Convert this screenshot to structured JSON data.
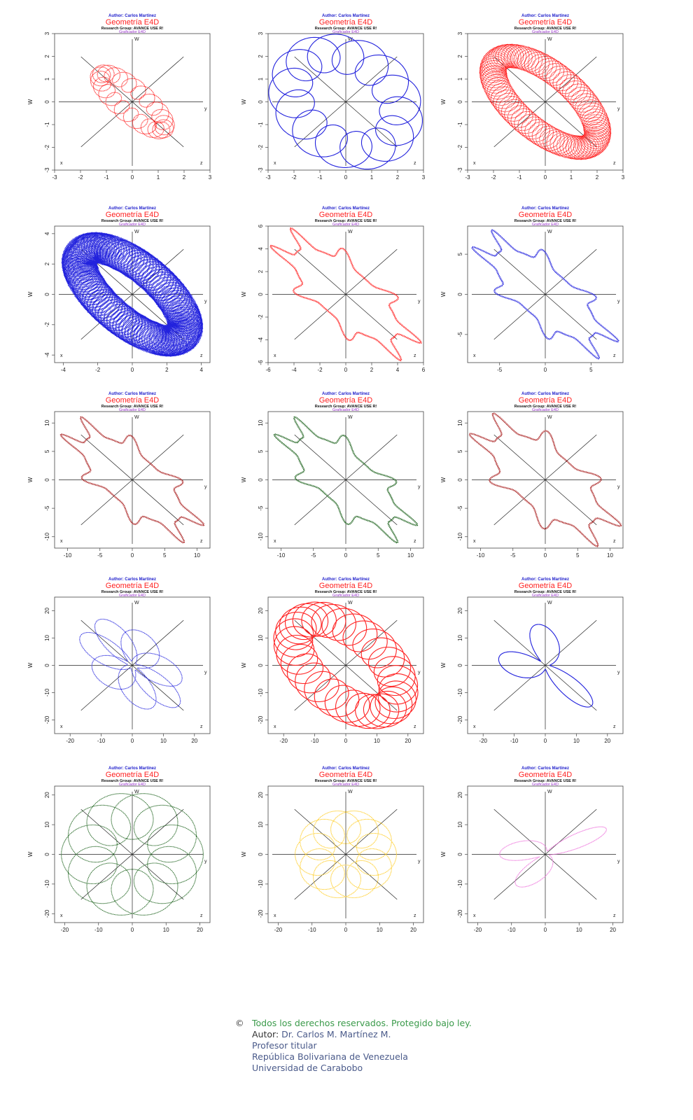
{
  "header": {
    "author": "Author: Carlos Martínez",
    "title": "Geometría E4D",
    "group": "Research Group: AVANCE USE R!",
    "graficador": "Graficador E4D",
    "colors": {
      "author": "#2222cc",
      "title": "#ff2222",
      "group": "#111111",
      "graficador": "#9933cc"
    }
  },
  "chart_data": [
    {
      "type": "scatter",
      "title": "Geometría E4D",
      "ylabel": "W",
      "corner_labels": {
        "w": "W",
        "y": "y",
        "x": "x",
        "z": "z"
      },
      "xlim": [
        -3,
        3
      ],
      "ylim": [
        -3,
        3
      ],
      "xticks": [
        -3,
        -2,
        -1,
        0,
        1,
        2,
        3
      ],
      "yticks": [
        -3,
        -2,
        -1,
        0,
        1,
        2,
        3
      ],
      "curve": "wavy-diagonal",
      "color": "#ff2222",
      "R": 1.7,
      "wobble": 0.22,
      "freq": 22,
      "aspect": 0.3
    },
    {
      "type": "line",
      "title": "Geometría E4D",
      "ylabel": "W",
      "corner_labels": {
        "w": "W",
        "y": "y",
        "x": "x",
        "z": "z"
      },
      "xlim": [
        -3,
        3
      ],
      "ylim": [
        -3,
        3
      ],
      "xticks": [
        -3,
        -2,
        -1,
        0,
        1,
        2,
        3
      ],
      "yticks": [
        -3,
        -2,
        -1,
        0,
        1,
        2,
        3
      ],
      "curve": "wavy-path",
      "color": "#2222dd",
      "R": 2.4,
      "wobble": 0.35,
      "freq": 14,
      "aspect": 0.55
    },
    {
      "type": "scatter",
      "title": "Geometría E4D",
      "ylabel": "W",
      "corner_labels": {
        "w": "W",
        "y": "y",
        "x": "x",
        "z": "z"
      },
      "xlim": [
        -3,
        3
      ],
      "ylim": [
        -3,
        3
      ],
      "xticks": [
        -3,
        -2,
        -1,
        0,
        1,
        2,
        3
      ],
      "yticks": [
        -3,
        -2,
        -1,
        0,
        1,
        2,
        3
      ],
      "curve": "helix-ellipse",
      "color": "#ff2222",
      "R": 2.6,
      "wobble": 0.2,
      "freq": 90,
      "aspect": 0.45
    },
    {
      "type": "scatter",
      "title": "Geometría E4D",
      "ylabel": "W",
      "corner_labels": {
        "w": "W",
        "y": "y",
        "x": "x",
        "z": "z"
      },
      "xlim": [
        -4.5,
        4.5
      ],
      "ylim": [
        -4.5,
        4.5
      ],
      "xticks": [
        -4,
        -2,
        0,
        2,
        4
      ],
      "yticks": [
        -4,
        -2,
        0,
        2,
        4
      ],
      "curve": "helix-ellipse-dots",
      "color": "#2222dd",
      "R": 4.0,
      "wobble": 0.25,
      "freq": 110,
      "aspect": 0.42
    },
    {
      "type": "scatter",
      "title": "Geometría E4D",
      "ylabel": "W",
      "corner_labels": {
        "w": "W",
        "y": "y",
        "x": "x",
        "z": "z"
      },
      "xlim": [
        -6,
        6
      ],
      "ylim": [
        -6,
        6
      ],
      "xticks": [
        -6,
        -4,
        -2,
        0,
        2,
        4,
        6
      ],
      "yticks": [
        -6,
        -4,
        -2,
        0,
        2,
        4,
        6
      ],
      "curve": "ellipse-lobes",
      "color": "#ff2222",
      "R": 5.3,
      "wobble": 0.45,
      "freq": 4,
      "aspect": 0.38
    },
    {
      "type": "scatter",
      "title": "Geometría E4D",
      "ylabel": "W",
      "corner_labels": {
        "w": "W",
        "y": "y",
        "x": "x",
        "z": "z"
      },
      "xlim": [
        -8.5,
        8.5
      ],
      "ylim": [
        -8.5,
        8.5
      ],
      "xticks": [
        -5,
        0,
        5
      ],
      "yticks": [
        -5,
        0,
        5
      ],
      "curve": "ellipse-lobes",
      "color": "#2222dd",
      "R": 7.3,
      "wobble": 0.45,
      "freq": 4,
      "aspect": 0.38
    },
    {
      "type": "scatter",
      "title": "Geometría E4D",
      "ylabel": "W",
      "corner_labels": {
        "w": "W",
        "y": "y",
        "x": "x",
        "z": "z"
      },
      "xlim": [
        -12,
        12
      ],
      "ylim": [
        -12,
        12
      ],
      "xticks": [
        -10,
        -5,
        0,
        5,
        10
      ],
      "yticks": [
        -10,
        -5,
        0,
        5,
        10
      ],
      "curve": "ellipse-lobes",
      "color": "#aa2222",
      "R": 10,
      "wobble": 0.45,
      "freq": 4,
      "aspect": 0.4
    },
    {
      "type": "scatter",
      "title": "Geometría E4D",
      "ylabel": "W",
      "corner_labels": {
        "w": "W",
        "y": "y",
        "x": "x",
        "z": "z"
      },
      "xlim": [
        -12,
        12
      ],
      "ylim": [
        -12,
        12
      ],
      "xticks": [
        -10,
        -5,
        0,
        5,
        10
      ],
      "yticks": [
        -10,
        -5,
        0,
        5,
        10
      ],
      "curve": "ellipse-lobes",
      "color": "#226622",
      "R": 10,
      "wobble": 0.45,
      "freq": 4,
      "aspect": 0.4
    },
    {
      "type": "scatter",
      "title": "Geometría E4D",
      "ylabel": "W",
      "corner_labels": {
        "w": "W",
        "y": "y",
        "x": "x",
        "z": "z"
      },
      "xlim": [
        -12,
        12
      ],
      "ylim": [
        -12,
        12
      ],
      "xticks": [
        -10,
        -5,
        0,
        5,
        10
      ],
      "yticks": [
        -10,
        -5,
        0,
        5,
        10
      ],
      "curve": "ellipse-lobes",
      "color": "#aa2222",
      "R": 10.4,
      "wobble": 0.45,
      "freq": 4,
      "aspect": 0.45
    },
    {
      "type": "scatter",
      "title": "Geometría E4D",
      "ylabel": "W",
      "corner_labels": {
        "w": "W",
        "y": "y",
        "x": "x",
        "z": "z"
      },
      "xlim": [
        -25,
        25
      ],
      "ylim": [
        -25,
        25
      ],
      "xticks": [
        -20,
        -10,
        0,
        10,
        20
      ],
      "yticks": [
        -20,
        -10,
        0,
        10,
        20
      ],
      "curve": "rose-ellipse",
      "color": "#2222dd",
      "R": 21,
      "wobble": 0.3,
      "freq": 7,
      "aspect": 0.55
    },
    {
      "type": "line",
      "title": "Geometría E4D",
      "ylabel": "W",
      "corner_labels": {
        "w": "W",
        "y": "y",
        "x": "x",
        "z": "z"
      },
      "xlim": [
        -25,
        25
      ],
      "ylim": [
        -25,
        25
      ],
      "xticks": [
        -20,
        -10,
        0,
        10,
        20
      ],
      "yticks": [
        -20,
        -10,
        0,
        10,
        20
      ],
      "curve": "dense-ellipse",
      "color": "#ff2222",
      "R": 21,
      "wobble": 0.3,
      "freq": 31,
      "aspect": 0.55
    },
    {
      "type": "scatter",
      "title": "Geometría E4D",
      "ylabel": "W",
      "corner_labels": {
        "w": "W",
        "y": "y",
        "x": "x",
        "z": "z"
      },
      "xlim": [
        -25,
        25
      ],
      "ylim": [
        -25,
        25
      ],
      "xticks": [
        -20,
        -10,
        0,
        10,
        20
      ],
      "yticks": [
        -20,
        -10,
        0,
        10,
        20
      ],
      "curve": "rose-ellipse",
      "color": "#2222dd",
      "R": 21,
      "wobble": 0.3,
      "freq": 9,
      "aspect": 0.55
    },
    {
      "type": "scatter",
      "title": "Geometría E4D",
      "ylabel": "W",
      "corner_labels": {
        "w": "W",
        "y": "y",
        "x": "x",
        "z": "z"
      },
      "xlim": [
        -23,
        23
      ],
      "ylim": [
        -23,
        23
      ],
      "xticks": [
        -20,
        -10,
        0,
        10,
        20
      ],
      "yticks": [
        -20,
        -10,
        0,
        10,
        20
      ],
      "curve": "circle-rose",
      "color": "#226622",
      "R": 21,
      "wobble": 0.4,
      "freq": 11,
      "aspect": 1
    },
    {
      "type": "scatter",
      "title": "Geometría E4D",
      "ylabel": "W",
      "corner_labels": {
        "w": "W",
        "y": "y",
        "x": "x",
        "z": "z"
      },
      "xlim": [
        -23,
        23
      ],
      "ylim": [
        -23,
        23
      ],
      "xticks": [
        -20,
        -10,
        0,
        10,
        20
      ],
      "yticks": [
        -20,
        -10,
        0,
        10,
        20
      ],
      "curve": "circle-rose",
      "color": "#ffcc22",
      "R": 15,
      "wobble": 0.4,
      "freq": 11,
      "aspect": 1
    },
    {
      "type": "scatter",
      "title": "Geometría E4D",
      "ylabel": "W",
      "corner_labels": {
        "w": "W",
        "y": "y",
        "x": "x",
        "z": "z"
      },
      "xlim": [
        -23,
        23
      ],
      "ylim": [
        -23,
        23
      ],
      "xticks": [
        -20,
        -10,
        0,
        10,
        20
      ],
      "yticks": [
        -20,
        -10,
        0,
        10,
        20
      ],
      "curve": "tilted-rose",
      "color": "#ee77dd",
      "R": 20,
      "wobble": 0.35,
      "freq": 9,
      "aspect": 0.42
    }
  ],
  "footer": {
    "copyright_symbol": "©",
    "rights": "Todos los derechos reservados. Protegido bajo ley.",
    "author_label": "Autor:",
    "author_name": " Dr. Carlos M. Martínez  M.",
    "position": "Profesor titular",
    "country": "República Bolivariana de Venezuela",
    "university": "Universidad de Carabobo"
  }
}
